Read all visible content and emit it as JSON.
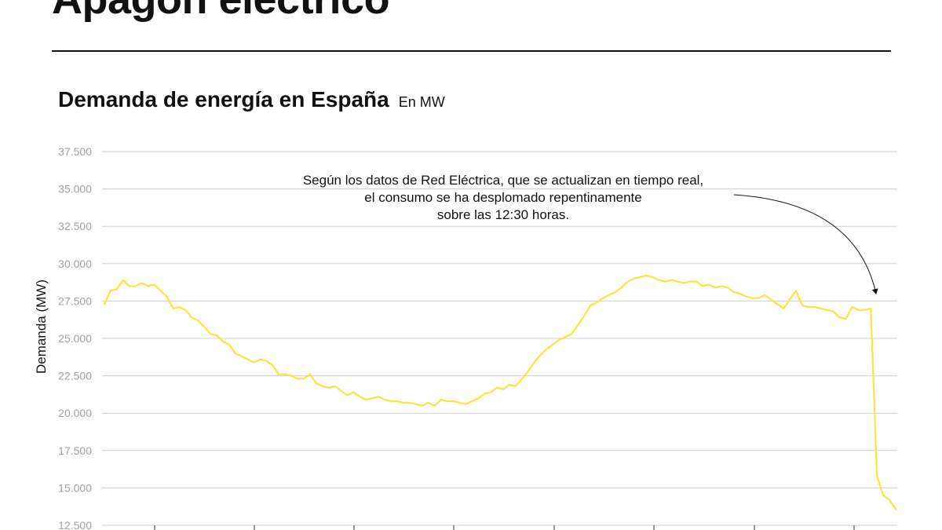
{
  "header": {
    "headline": "Apagón eléctrico"
  },
  "chart_data": {
    "type": "line",
    "title": "Demanda de energía en España",
    "subtitle": "En MW",
    "ylabel": "Demanda (MW)",
    "xlabel": "",
    "ylim": [
      12500,
      37500
    ],
    "yticks": [
      "37.500",
      "35.000",
      "32.500",
      "30.000",
      "27.500",
      "25.000",
      "22.500",
      "20.000",
      "17.500",
      "15.000",
      "12.500"
    ],
    "ytick_values": [
      37500,
      35000,
      32500,
      30000,
      27500,
      25000,
      22500,
      20000,
      17500,
      15000,
      12500
    ],
    "grid": true,
    "line_color": "#f7e640",
    "annotation": {
      "lines": [
        "Según los datos de Red Eléctrica, que se actualizan en tiempo real,",
        "el consumo se ha desplomado repentinamente",
        "sobre las 12:30 horas."
      ]
    },
    "series": [
      {
        "values": [
          27300,
          28200,
          28300,
          28900,
          28500,
          28500,
          28700,
          28500,
          28600,
          28200,
          27800,
          27000,
          27100,
          26900,
          26400,
          26200,
          25800,
          25300,
          25200,
          24800,
          24600,
          24000,
          23800,
          23600,
          23400,
          23600,
          23500,
          23200,
          22600,
          22600,
          22500,
          22300,
          22300,
          22600,
          22000,
          21800,
          21700,
          21800,
          21500,
          21200,
          21400,
          21100,
          20900,
          21000,
          21100,
          20900,
          20800,
          20800,
          20700,
          20700,
          20600,
          20500,
          20700,
          20500,
          20900,
          20800,
          20800,
          20700,
          20600,
          20800,
          21000,
          21300,
          21400,
          21700,
          21600,
          21900,
          21800,
          22300,
          22800,
          23400,
          23900,
          24300,
          24600,
          24900,
          25100,
          25300,
          25900,
          26500,
          27200,
          27400,
          27700,
          27900,
          28100,
          28400,
          28800,
          29000,
          29100,
          29200,
          29100,
          28900,
          28800,
          28900,
          28800,
          28700,
          28800,
          28800,
          28500,
          28600,
          28400,
          28500,
          28400,
          28100,
          28000,
          27800,
          27700,
          27700,
          27900,
          27600,
          27300,
          27000,
          27600,
          28200,
          27200,
          27100,
          27100,
          27000,
          26900,
          26800,
          26400,
          26300,
          27100,
          26900,
          26900,
          27000,
          15800,
          14500,
          14200,
          13600
        ]
      }
    ]
  }
}
